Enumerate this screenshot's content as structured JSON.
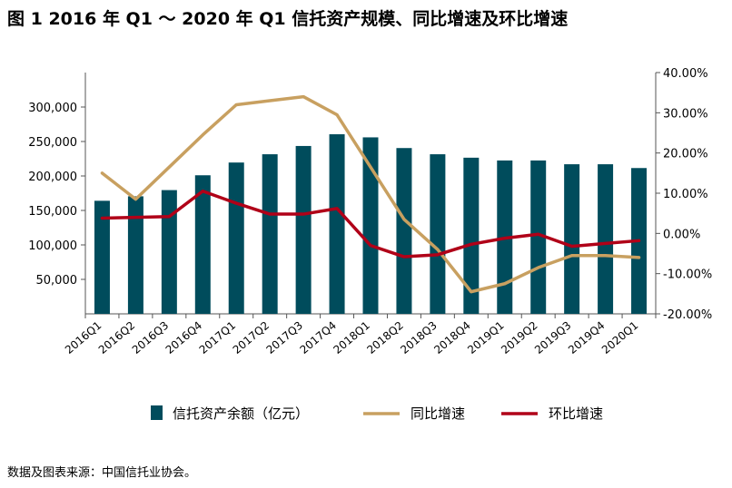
{
  "title": "图 1  2016 年 Q1 ～ 2020 年 Q1 信托资产规模、同比增速及环比增速",
  "source": "数据及图表来源：中国信托业协会。",
  "colors": {
    "bar": "#004c5c",
    "yoy": "#c8a060",
    "qoq": "#b00018"
  },
  "chart_data": {
    "type": "bar",
    "categories": [
      "2016Q1",
      "2016Q2",
      "2016Q3",
      "2016Q4",
      "2017Q1",
      "2017Q2",
      "2017Q3",
      "2017Q4",
      "2018Q1",
      "2018Q2",
      "2018Q3",
      "2018Q4",
      "2019Q1",
      "2019Q2",
      "2019Q3",
      "2019Q4",
      "2020Q1"
    ],
    "series": [
      {
        "name": "信托资产余额（亿元）",
        "type": "bar",
        "axis": "left",
        "values": [
          164000,
          170500,
          179500,
          201000,
          219500,
          231500,
          243500,
          260500,
          256000,
          240500,
          231500,
          226500,
          222500,
          222500,
          217000,
          217000,
          211500
        ]
      },
      {
        "name": "同比增速",
        "type": "line",
        "axis": "right",
        "values": [
          15.0,
          8.5,
          16.5,
          24.5,
          32.0,
          33.0,
          34.0,
          29.5,
          16.5,
          3.5,
          -4.0,
          -14.5,
          -12.5,
          -8.5,
          -5.5,
          -5.5,
          -6.0
        ]
      },
      {
        "name": "环比增速",
        "type": "line",
        "axis": "right",
        "values": [
          3.8,
          4.0,
          4.2,
          10.5,
          7.5,
          4.8,
          4.8,
          6.2,
          -3.0,
          -5.8,
          -5.3,
          -2.7,
          -1.2,
          -0.2,
          -3.2,
          -2.5,
          -1.8
        ]
      }
    ],
    "yleft": {
      "lim": [
        0,
        350000
      ],
      "ticks": [
        "300,000",
        "250,000",
        "200,000",
        "150,000",
        "100,000",
        "50,000"
      ],
      "tick_values": [
        300000,
        250000,
        200000,
        150000,
        100000,
        50000
      ]
    },
    "yright": {
      "lim": [
        -20,
        40
      ],
      "ticks": [
        "40.00%",
        "30.00%",
        "20.00%",
        "10.00%",
        "0.00%",
        "-10.00%",
        "-20.00%"
      ],
      "tick_values": [
        40,
        30,
        20,
        10,
        0,
        -10,
        -20
      ]
    },
    "legend": [
      "信托资产余额（亿元）",
      "同比增速",
      "环比增速"
    ],
    "legend_position": "bottom",
    "grid": false
  }
}
